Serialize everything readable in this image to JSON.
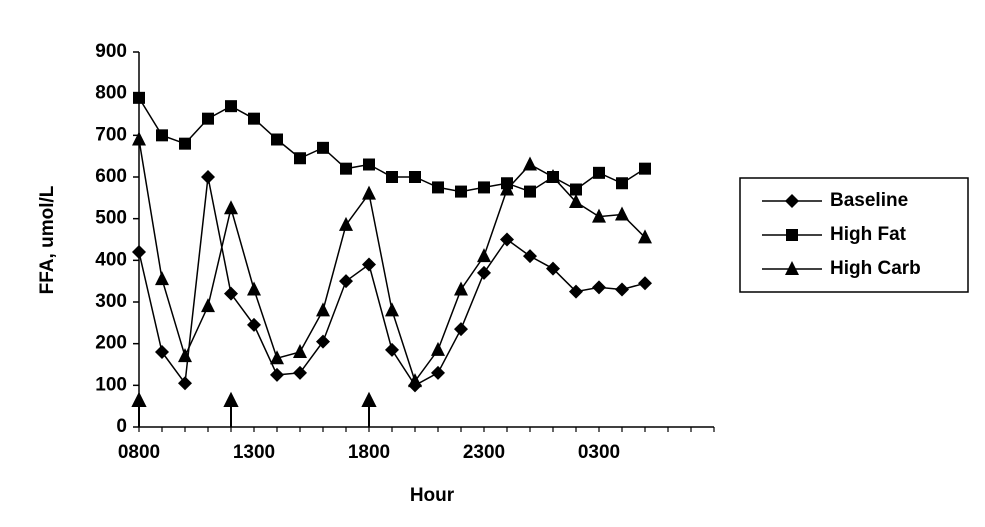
{
  "chart_data": {
    "type": "line",
    "xlabel": "Hour",
    "ylabel": "FFA, umol/L",
    "categories": [
      "0800",
      null,
      null,
      null,
      null,
      "1300",
      null,
      null,
      null,
      null,
      "1800",
      null,
      null,
      null,
      null,
      "2300",
      null,
      null,
      null,
      null,
      "0300",
      null,
      null
    ],
    "series": [
      {
        "name": "Baseline",
        "color": "#000000",
        "marker": "diamond",
        "values": [
          420,
          180,
          105,
          600,
          320,
          245,
          125,
          130,
          205,
          350,
          390,
          185,
          100,
          130,
          235,
          370,
          450,
          410,
          380,
          325,
          335,
          330,
          345
        ]
      },
      {
        "name": "High Fat",
        "color": "#000000",
        "marker": "square",
        "values": [
          790,
          700,
          680,
          740,
          770,
          740,
          690,
          645,
          670,
          620,
          630,
          600,
          600,
          575,
          565,
          575,
          585,
          565,
          600,
          570,
          610,
          585,
          620
        ]
      },
      {
        "name": "High Carb",
        "color": "#000000",
        "marker": "triangle",
        "values": [
          690,
          355,
          170,
          290,
          525,
          330,
          165,
          180,
          280,
          485,
          560,
          280,
          110,
          185,
          330,
          410,
          570,
          630,
          600,
          540,
          505,
          510,
          455
        ]
      }
    ],
    "ylim": [
      0,
      900
    ],
    "yticks": [
      0,
      100,
      200,
      300,
      400,
      500,
      600,
      700,
      800,
      900
    ],
    "grid": false,
    "legend": "right"
  }
}
